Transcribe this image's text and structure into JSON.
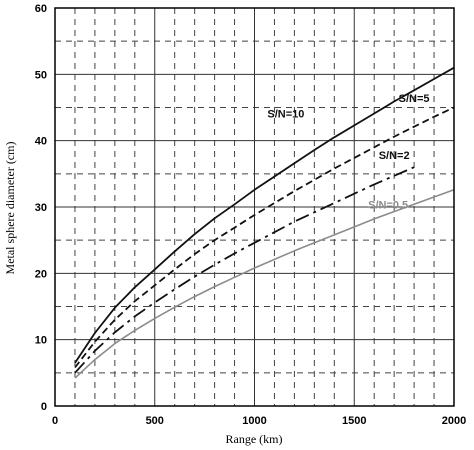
{
  "chart_data": {
    "type": "line",
    "xlabel": "Range (km)",
    "ylabel": "Metal sphere diameter (cm)",
    "xlim": [
      0,
      2000
    ],
    "ylim": [
      0,
      60
    ],
    "x_ticks": [
      "0",
      "500",
      "1000",
      "1500",
      "2000"
    ],
    "y_ticks": [
      "0",
      "10",
      "20",
      "30",
      "40",
      "50",
      "60"
    ],
    "grid": {
      "major_solid": true,
      "minor_dashed": true,
      "x_minor_step": 100,
      "y_minor_step": 5
    },
    "series": [
      {
        "name": "S/N=10",
        "style": "solid",
        "color": "#111111",
        "x": [
          100,
          200,
          300,
          400,
          500,
          600,
          700,
          800,
          900,
          1000,
          1100,
          1200,
          1300,
          1400,
          1500,
          1600,
          1700,
          1800,
          1900,
          2000
        ],
        "y": [
          6.5,
          11.0,
          14.8,
          17.9,
          20.6,
          23.3,
          25.9,
          28.3,
          30.4,
          32.6,
          34.6,
          36.6,
          38.6,
          40.5,
          42.3,
          44.1,
          45.9,
          47.6,
          49.3,
          51.0
        ]
      },
      {
        "name": "S/N=5",
        "style": "dashed",
        "color": "#111111",
        "x": [
          100,
          200,
          300,
          400,
          500,
          600,
          700,
          800,
          900,
          1000,
          1100,
          1200,
          1300,
          1400,
          1500,
          1600,
          1700,
          1800,
          1900,
          2000
        ],
        "y": [
          5.8,
          9.7,
          13.0,
          15.8,
          18.2,
          20.6,
          22.9,
          25.0,
          26.9,
          28.8,
          30.6,
          32.4,
          34.1,
          35.8,
          37.4,
          39.0,
          40.6,
          42.1,
          43.6,
          45.0
        ]
      },
      {
        "name": "S/N=2",
        "style": "dashdot",
        "color": "#111111",
        "x": [
          100,
          200,
          300,
          400,
          500,
          600,
          700,
          800,
          900,
          1000,
          1100,
          1200,
          1300,
          1400,
          1500,
          1600,
          1700,
          1800
        ],
        "y": [
          5.0,
          8.3,
          11.1,
          13.5,
          15.6,
          17.6,
          19.5,
          21.3,
          23.0,
          24.6,
          26.2,
          27.8,
          29.2,
          30.6,
          32.0,
          33.4,
          34.7,
          36.0
        ]
      },
      {
        "name": "S/N=0.5",
        "style": "solid",
        "color": "#8c8c8c",
        "x": [
          100,
          200,
          300,
          400,
          500,
          600,
          700,
          800,
          900,
          1000,
          1100,
          1200,
          1300,
          1400,
          1500,
          1600,
          1700,
          1800,
          1900,
          2000
        ],
        "y": [
          4.2,
          7.0,
          9.4,
          11.4,
          13.2,
          14.9,
          16.5,
          18.0,
          19.4,
          20.8,
          22.1,
          23.4,
          24.6,
          25.8,
          27.0,
          28.2,
          29.3,
          30.4,
          31.5,
          32.6
        ]
      }
    ]
  }
}
